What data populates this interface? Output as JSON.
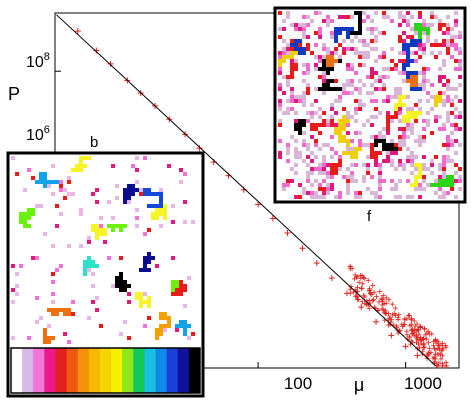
{
  "chart_data": {
    "type": "scatter",
    "scale": "log-log",
    "xlabel": "μ",
    "ylabel": "P",
    "xlim": [
      4.2,
      2300
    ],
    "ylim": [
      2500,
      800000000
    ],
    "x_ticks": [
      {
        "value": 100,
        "label": "100"
      },
      {
        "value": 1000,
        "label": "1000"
      }
    ],
    "y_ticks": [
      {
        "value": 1000000,
        "label_base": "10",
        "label_exp": "6"
      },
      {
        "value": 100000000,
        "label_base": "10",
        "label_exp": "8"
      }
    ],
    "series": [
      {
        "marker": "+",
        "color": "#e0201a",
        "points": [
          [
            6,
            420000000.0
          ],
          [
            8,
            210000000.0
          ],
          [
            10,
            130000000.0
          ],
          [
            13,
            72000000.0
          ],
          [
            16,
            46000000.0
          ],
          [
            20,
            29000000.0
          ],
          [
            25,
            18000000.0
          ],
          [
            32,
            10500000.0
          ],
          [
            40,
            6400000.0
          ],
          [
            50,
            3900000.0
          ],
          [
            63,
            2400000.0
          ],
          [
            80,
            1450000.0
          ],
          [
            100,
            860000.0
          ],
          [
            126,
            520000.0
          ],
          [
            158,
            310000.0
          ],
          [
            200,
            180000.0
          ],
          [
            250,
            106000.0
          ],
          [
            316,
            62000.0
          ],
          [
            400,
            36000.0
          ],
          [
            500,
            22000.0
          ],
          [
            630,
            13000.0
          ],
          [
            800,
            8000.0
          ],
          [
            1000,
            5400.0
          ],
          [
            1200,
            3900.0
          ]
        ]
      }
    ],
    "fit_line": {
      "color": "#000000",
      "from": [
        4.3,
        750000000.0
      ],
      "to": [
        1600,
        2700
      ]
    },
    "insets": [
      {
        "label": "b",
        "colors": [
          "#e9b8e2",
          "#f072d7",
          "#e2197d",
          "#e81a1a",
          "#ee7010",
          "#f4a000",
          "#f2ce0a",
          "#f4f427",
          "#6bf20a",
          "#2de0c8",
          "#12a2e8",
          "#1547d8",
          "#0a0a8e",
          "#000000"
        ],
        "colorbar": [
          "#ffffff",
          "#d8b8e8",
          "#f075d6",
          "#ea1a8a",
          "#e32020",
          "#ee5a10",
          "#f4900a",
          "#f7b800",
          "#f6d400",
          "#f5f000",
          "#8de81a",
          "#12c85a",
          "#1ac0e0",
          "#1088e8",
          "#1c40d8",
          "#10109a",
          "#000000"
        ]
      },
      {
        "label": "f",
        "colors": [
          "#d9b5d8",
          "#f06ad0",
          "#e2197d",
          "#e81a1a",
          "#ee7010",
          "#f2ce0a",
          "#f4f427",
          "#2bd418",
          "#1038c0",
          "#000000"
        ]
      }
    ]
  }
}
